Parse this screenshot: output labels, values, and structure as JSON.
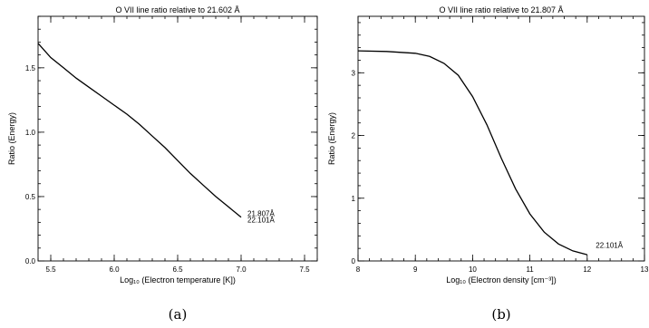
{
  "chart_data": [
    {
      "type": "line",
      "title": "O  VII line ratio relative to 21.602 Å",
      "xlabel": "Log₁₀ (Electron temperature [K])",
      "ylabel": "Ratio (Energy)",
      "caption": "(a)",
      "xlim": [
        5.4,
        7.6
      ],
      "ylim": [
        0.0,
        1.9
      ],
      "xticks": [
        5.5,
        6.0,
        6.5,
        7.0,
        7.5
      ],
      "xtick_labels": [
        "5.5",
        "6.0",
        "6.5",
        "7.0",
        "7.5"
      ],
      "yticks": [
        0.0,
        0.5,
        1.0,
        1.5
      ],
      "ytick_labels": [
        "0.0",
        "0.5",
        "1.0",
        "1.5"
      ],
      "grid": false,
      "series": [
        {
          "x": [
            5.4,
            5.5,
            5.6,
            5.7,
            5.8,
            5.9,
            6.0,
            6.1,
            6.2,
            6.3,
            6.4,
            6.5,
            6.6,
            6.7,
            6.8,
            6.9,
            7.0
          ],
          "y": [
            1.69,
            1.58,
            1.5,
            1.42,
            1.35,
            1.28,
            1.21,
            1.14,
            1.06,
            0.97,
            0.88,
            0.78,
            0.68,
            0.59,
            0.5,
            0.42,
            0.34
          ]
        }
      ],
      "annotations": [
        {
          "text": "21.807Å",
          "x": 7.05,
          "y": 0.37
        },
        {
          "text": "22.101Å",
          "x": 7.05,
          "y": 0.32
        }
      ]
    },
    {
      "type": "line",
      "title": "O  VII line ratio relative to 21.807 Å",
      "xlabel": "Log₁₀ (Electron density [cm⁻³])",
      "ylabel": "Ratio (Energy)",
      "caption": "(b)",
      "xlim": [
        8,
        13
      ],
      "ylim": [
        0,
        3.9
      ],
      "xticks": [
        8,
        9,
        10,
        11,
        12,
        13
      ],
      "xtick_labels": [
        "8",
        "9",
        "10",
        "11",
        "12",
        "13"
      ],
      "yticks": [
        0,
        1,
        2,
        3
      ],
      "ytick_labels": [
        "0",
        "1",
        "2",
        "3"
      ],
      "grid": false,
      "series": [
        {
          "x": [
            8.0,
            8.5,
            9.0,
            9.25,
            9.5,
            9.75,
            10.0,
            10.25,
            10.5,
            10.75,
            11.0,
            11.25,
            11.5,
            11.75,
            12.0
          ],
          "y": [
            3.35,
            3.34,
            3.31,
            3.26,
            3.15,
            2.96,
            2.62,
            2.17,
            1.64,
            1.15,
            0.75,
            0.46,
            0.27,
            0.16,
            0.1
          ]
        }
      ],
      "annotations": [
        {
          "text": "22.101Å",
          "x": 12.15,
          "y": 0.25
        }
      ]
    }
  ]
}
